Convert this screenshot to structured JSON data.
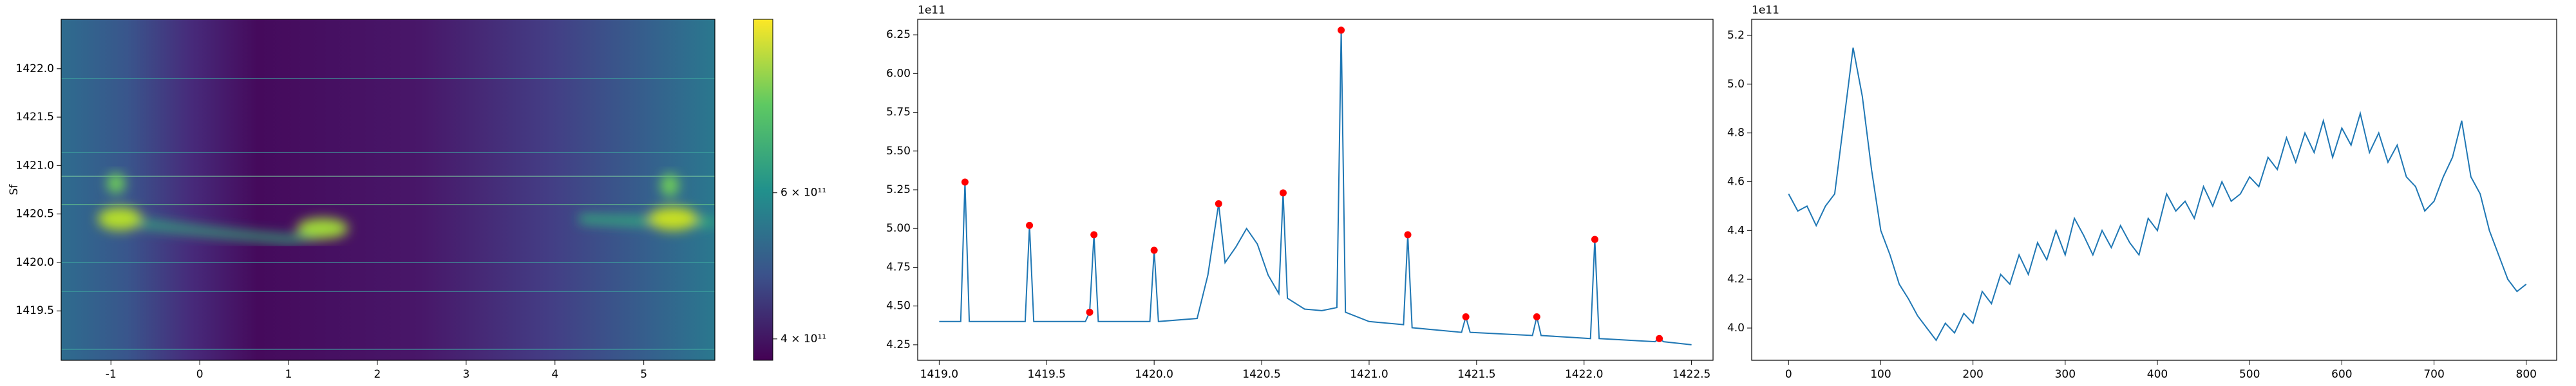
{
  "chart_data": [
    {
      "type": "heatmap",
      "ylabel": "Sf",
      "xlim": [
        -1.56,
        5.8
      ],
      "xticks": [
        -1,
        0,
        1,
        2,
        3,
        4,
        5
      ],
      "ylim": [
        1418.99,
        1422.51
      ],
      "yticks": [
        1419.5,
        {
          "value": 1420.0,
          "label": "1420.0"
        },
        1420.5,
        {
          "value": 1421.0,
          "label": "1421.0"
        },
        1421.5,
        {
          "value": 1422.0,
          "label": "1422.0"
        }
      ],
      "colorbar": {
        "scale": "log",
        "lim": [
          377000000000,
          971000000000
        ],
        "ticks": [
          {
            "value": 400000000000,
            "label": "4 × 10¹¹"
          },
          {
            "value": 600000000000,
            "label": "6 × 10¹¹"
          }
        ]
      }
    },
    {
      "type": "line",
      "offset_label": "1e11",
      "xlim": [
        1418.9,
        1422.6
      ],
      "xticks": [
        {
          "value": 1419.0,
          "label": "1419.0"
        },
        1419.5,
        {
          "value": 1420.0,
          "label": "1420.0"
        },
        1420.5,
        {
          "value": 1421.0,
          "label": "1421.0"
        },
        1421.5,
        {
          "value": 1422.0,
          "label": "1422.0"
        },
        1422.5
      ],
      "ylim": [
        4.15,
        6.35
      ],
      "yticks": [
        4.25,
        {
          "value": 4.5,
          "label": "4.50"
        },
        4.75,
        {
          "value": 5.0,
          "label": "5.00"
        },
        5.25,
        {
          "value": 5.5,
          "label": "5.50"
        },
        5.75,
        {
          "value": 6.0,
          "label": "6.00"
        },
        6.25
      ],
      "series": [
        {
          "color": "#1f77b4",
          "style": "line",
          "x": [
            1419.0,
            1419.1,
            1419.12,
            1419.14,
            1419.4,
            1419.42,
            1419.44,
            1419.68,
            1419.7,
            1419.72,
            1419.74,
            1419.98,
            1420.0,
            1420.02,
            1420.2,
            1420.25,
            1420.3,
            1420.33,
            1420.38,
            1420.43,
            1420.48,
            1420.53,
            1420.58,
            1420.6,
            1420.62,
            1420.7,
            1420.78,
            1420.85,
            1420.87,
            1420.89,
            1421.0,
            1421.16,
            1421.18,
            1421.2,
            1421.43,
            1421.45,
            1421.47,
            1421.76,
            1421.78,
            1421.8,
            1422.03,
            1422.05,
            1422.07,
            1422.33,
            1422.35,
            1422.37,
            1422.5
          ],
          "values": [
            4.4,
            4.4,
            5.3,
            4.4,
            4.4,
            5.02,
            4.4,
            4.4,
            4.46,
            4.96,
            4.4,
            4.4,
            4.86,
            4.4,
            4.42,
            4.7,
            5.16,
            4.78,
            4.88,
            5.0,
            4.9,
            4.7,
            4.58,
            5.23,
            4.55,
            4.48,
            4.47,
            4.49,
            6.28,
            4.46,
            4.4,
            4.38,
            4.96,
            4.36,
            4.33,
            4.43,
            4.33,
            4.31,
            4.43,
            4.31,
            4.29,
            4.93,
            4.29,
            4.27,
            4.29,
            4.27,
            4.25
          ]
        },
        {
          "color": "#ff0000",
          "style": "points",
          "x": [
            1419.12,
            1419.42,
            1419.7,
            1419.72,
            1420.0,
            1420.3,
            1420.6,
            1420.87,
            1421.18,
            1421.45,
            1421.78,
            1422.05,
            1422.35
          ],
          "values": [
            5.3,
            5.02,
            4.46,
            4.96,
            4.86,
            5.16,
            5.23,
            6.28,
            4.96,
            4.43,
            4.43,
            4.93,
            4.29
          ]
        }
      ]
    },
    {
      "type": "line",
      "offset_label": "1e11",
      "xlim": [
        -40,
        833
      ],
      "xticks": [
        0,
        100,
        200,
        300,
        400,
        500,
        600,
        700,
        800
      ],
      "ylim": [
        3.868,
        5.266
      ],
      "yticks": [
        {
          "value": 4.0,
          "label": "4.0"
        },
        4.2,
        4.4,
        4.6,
        4.8,
        {
          "value": 5.0,
          "label": "5.0"
        },
        5.2
      ],
      "series": [
        {
          "color": "#1f77b4",
          "style": "line",
          "x": [
            0,
            10,
            20,
            30,
            40,
            50,
            60,
            70,
            80,
            90,
            100,
            110,
            120,
            130,
            140,
            150,
            160,
            170,
            180,
            190,
            200,
            210,
            220,
            230,
            240,
            250,
            260,
            270,
            280,
            290,
            300,
            310,
            320,
            330,
            340,
            350,
            360,
            370,
            380,
            390,
            400,
            410,
            420,
            430,
            440,
            450,
            460,
            470,
            480,
            490,
            500,
            510,
            520,
            530,
            540,
            550,
            560,
            570,
            580,
            590,
            600,
            610,
            620,
            630,
            640,
            650,
            660,
            670,
            680,
            690,
            700,
            710,
            720,
            730,
            740,
            750,
            760,
            770,
            780,
            790,
            800
          ],
          "values": [
            4.55,
            4.48,
            4.5,
            4.42,
            4.5,
            4.55,
            4.85,
            5.15,
            4.95,
            4.65,
            4.4,
            4.3,
            4.18,
            4.12,
            4.05,
            4.0,
            3.95,
            4.02,
            3.98,
            4.06,
            4.02,
            4.15,
            4.1,
            4.22,
            4.18,
            4.3,
            4.22,
            4.35,
            4.28,
            4.4,
            4.3,
            4.45,
            4.38,
            4.3,
            4.4,
            4.33,
            4.42,
            4.35,
            4.3,
            4.45,
            4.4,
            4.55,
            4.48,
            4.52,
            4.45,
            4.58,
            4.5,
            4.6,
            4.52,
            4.55,
            4.62,
            4.58,
            4.7,
            4.65,
            4.78,
            4.68,
            4.8,
            4.72,
            4.85,
            4.7,
            4.82,
            4.75,
            4.88,
            4.72,
            4.8,
            4.68,
            4.75,
            4.62,
            4.58,
            4.48,
            4.52,
            4.62,
            4.7,
            4.85,
            4.62,
            4.55,
            4.4,
            4.3,
            4.2,
            4.15,
            4.18
          ]
        }
      ]
    }
  ]
}
